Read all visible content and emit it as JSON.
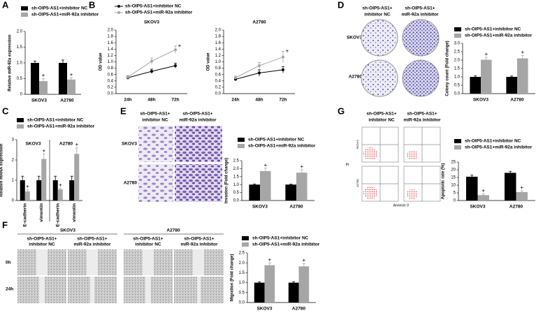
{
  "panel_labels": [
    "A",
    "B",
    "C",
    "D",
    "E",
    "F",
    "G"
  ],
  "images": {
    "colony": {
      "headers": [
        [
          "sh-OIP5-AS1+",
          "inhibitor NC"
        ],
        [
          "sh-OIP5-AS1+",
          "miR-92a inhibitor"
        ]
      ],
      "rows": [
        "SKOV3",
        "A2780"
      ]
    },
    "invasion": {
      "headers": [
        [
          "sh-OIP5-AS1+",
          "inhibitor NC"
        ],
        [
          "sh-OIP5-AS1+",
          "miR-92a inhibitor"
        ]
      ],
      "rows": [
        "SKOV3",
        "A2780"
      ]
    },
    "flow": {
      "headers": [
        [
          "sh-OIP5-AS1+",
          "inhibitor NC"
        ],
        [
          "sh-OIP5-AS1+",
          "miR-92a inhibitor"
        ]
      ],
      "rows": [
        "SKOV3",
        "A2780"
      ],
      "x_label": "Annexin V",
      "y_label": "PI"
    },
    "migration": {
      "groups": [
        "SKOV3",
        "A2780"
      ],
      "headers": [
        [
          "sh-OIP5-AS1+",
          "inhibitor NC"
        ],
        [
          "sh-OIP5-AS1+",
          "miR-92a inhibitor"
        ],
        [
          "sh-OIP5-AS1+",
          "inhibitor NC"
        ],
        [
          "sh-OIP5-AS1+",
          "miR-92a inhibitor"
        ]
      ],
      "rows": [
        "0h",
        "24h"
      ]
    }
  },
  "chart_data": [
    {
      "type": "bar",
      "ylabel": "Relative miR-92a expression",
      "categories": [
        "SKOV3",
        "A2780"
      ],
      "series": [
        {
          "name": "sh-OIP5-AS1+inhibitor NC",
          "color": "#000000",
          "values": [
            1.0,
            1.0
          ],
          "errors": [
            0.06,
            0.09
          ]
        },
        {
          "name": "sh-OIP5-AS1+miR-92a inhibitor",
          "color": "#a6a6a6",
          "values": [
            0.42,
            0.47
          ],
          "errors": [
            0.08,
            0.06
          ],
          "significance": [
            "+",
            "+"
          ]
        }
      ],
      "ylim": [
        0,
        2.0
      ],
      "yticks": [
        0,
        {
          "value": 0.5,
          "label": "0.5"
        },
        {
          "value": 1.0,
          "label": "1.0"
        },
        {
          "value": 1.5,
          "label": "1.5"
        },
        {
          "value": 2.0,
          "label": "2.0"
        }
      ]
    },
    {
      "type": "line",
      "title": "SKOV3",
      "ylabel": "OD value",
      "categories": [
        "24h",
        "48h",
        "72h"
      ],
      "series": [
        {
          "name": "sh-OIP5-AS1+inhibitor NC",
          "color": "#000000",
          "values": [
            0.5,
            0.7,
            0.88
          ],
          "errors": [
            0.05,
            0.07,
            0.08
          ]
        },
        {
          "name": "sh-OIP5-AS1+miR-92a inhibitor",
          "color": "#a6a6a6",
          "values": [
            0.52,
            1.02,
            1.38
          ],
          "errors": [
            0.05,
            0.1,
            0.12
          ],
          "significance": [
            null,
            null,
            "+"
          ]
        }
      ],
      "ylim": [
        0,
        2.0
      ],
      "yticks": [
        {
          "value": 0,
          "label": "0.0"
        },
        0.2,
        0.4,
        0.6,
        0.8,
        {
          "value": 1.0,
          "label": "1.0"
        },
        1.2,
        1.4,
        1.6,
        1.8,
        {
          "value": 2.0,
          "label": "2.0"
        }
      ]
    },
    {
      "type": "line",
      "title": "A2780",
      "ylabel": "OD value",
      "categories": [
        "24h",
        "48h",
        "72h"
      ],
      "series": [
        {
          "color": "#000000",
          "values": [
            0.45,
            0.65,
            0.75
          ],
          "errors": [
            0.04,
            0.1,
            0.1
          ]
        },
        {
          "color": "#a6a6a6",
          "values": [
            0.5,
            0.88,
            1.15
          ],
          "errors": [
            0.05,
            0.1,
            0.18
          ],
          "significance": [
            null,
            null,
            "+"
          ]
        }
      ],
      "ylim": [
        0,
        2.0
      ],
      "yticks": [
        {
          "value": 0,
          "label": "0.0"
        },
        0.2,
        0.4,
        0.6,
        0.8,
        {
          "value": 1.0,
          "label": "1.0"
        },
        1.2,
        1.4,
        1.6,
        1.8,
        {
          "value": 2.0,
          "label": "2.0"
        }
      ]
    },
    {
      "type": "bar",
      "ylabel": "Colony count (Fold change)",
      "categories": [
        "SKOV3",
        "A2780"
      ],
      "series": [
        {
          "name": "sh-OIP5-AS1+inhibitor NC",
          "color": "#000000",
          "values": [
            1.0,
            1.0
          ],
          "errors": [
            0.06,
            0.05
          ]
        },
        {
          "name": "sh-OIP5-AS1+miR-92a inhibitor",
          "color": "#a6a6a6",
          "values": [
            2.02,
            2.1
          ],
          "errors": [
            0.15,
            0.18
          ],
          "significance": [
            "+",
            "+"
          ]
        }
      ],
      "ylim": [
        0,
        3.0
      ],
      "yticks": [
        {
          "value": 0,
          "label": "0.0"
        },
        0.5,
        {
          "value": 1.0,
          "label": "1.0"
        },
        1.5,
        {
          "value": 2.0,
          "label": "2.0"
        },
        2.5,
        {
          "value": 3.0,
          "label": "3.0"
        }
      ]
    },
    {
      "type": "bar",
      "ylabel": "Relative mRNA expression",
      "categories": [
        "E-cadherin",
        "vimentin",
        "E-cadherin",
        "vimentin"
      ],
      "groups": [
        "SKOV3",
        "A2780"
      ],
      "series": [
        {
          "name": "sh-OIP5-AS1+inhibitor NC",
          "color": "#000000",
          "values": [
            1.0,
            1.0,
            1.0,
            1.0
          ],
          "errors": [
            0.2,
            0.2,
            0.2,
            0.2
          ]
        },
        {
          "name": "sh-OIP5-AS1+miR-92a inhibitor",
          "color": "#a6a6a6",
          "values": [
            0.45,
            2.05,
            0.55,
            2.3
          ],
          "errors": [
            0.08,
            0.25,
            0.06,
            0.3
          ],
          "significance": [
            "+",
            "+",
            "+",
            "+"
          ]
        }
      ],
      "ylim": [
        0,
        3
      ],
      "yticks": [
        0,
        1,
        2,
        3
      ]
    },
    {
      "type": "bar",
      "ylabel": "Invasion (Fold change)",
      "categories": [
        "SKOV3",
        "A2780"
      ],
      "series": [
        {
          "name": "sh-OIP5-AS1+inhibitor NC",
          "color": "#000000",
          "values": [
            1.0,
            1.0
          ],
          "errors": [
            0.04,
            0.03
          ]
        },
        {
          "name": "sh-OIP5-AS1+miR-92a inhibitor",
          "color": "#a6a6a6",
          "values": [
            1.85,
            1.75
          ],
          "errors": [
            0.18,
            0.18
          ],
          "significance": [
            "+",
            "+"
          ]
        }
      ],
      "ylim": [
        0,
        2.5
      ],
      "yticks": [
        {
          "value": 0,
          "label": "0.0"
        },
        0.5,
        {
          "value": 1.0,
          "label": "1.0"
        },
        1.5,
        {
          "value": 2.0,
          "label": "2.0"
        },
        2.5
      ]
    },
    {
      "type": "bar",
      "ylabel": "Apoptotic rate (%)",
      "categories": [
        "SKOV3",
        "A2780"
      ],
      "series": [
        {
          "name": "sh-OIP5-AS1+inhibitor NC",
          "color": "#000000",
          "values": [
            15.5,
            18
          ],
          "errors": [
            1,
            1
          ]
        },
        {
          "name": "sh-OIP5-AS1+miR-92a inhibitor",
          "color": "#a6a6a6",
          "values": [
            3.5,
            5.5
          ],
          "errors": [
            0.8,
            0.8
          ],
          "significance": [
            "+",
            "+"
          ]
        }
      ],
      "ylim": [
        0,
        25
      ],
      "yticks": [
        0,
        5,
        10,
        15,
        20,
        25
      ]
    },
    {
      "type": "bar",
      "ylabel": "Migration (Fold change)",
      "categories": [
        "SKOV3",
        "A2780"
      ],
      "series": [
        {
          "name": "sh-OIP5-AS1+inhibitor NC",
          "color": "#000000",
          "values": [
            1.0,
            1.0
          ],
          "errors": [
            0.04,
            0.05
          ]
        },
        {
          "name": "sh-OIP5-AS1+miR-92a inhibitor",
          "color": "#a6a6a6",
          "values": [
            1.88,
            1.82
          ],
          "errors": [
            0.12,
            0.15
          ],
          "significance": [
            "+",
            "+"
          ]
        }
      ],
      "ylim": [
        0,
        2.5
      ],
      "yticks": [
        {
          "value": 0,
          "label": "0.0"
        },
        0.5,
        {
          "value": 1.0,
          "label": "1.0"
        },
        1.5,
        {
          "value": 2.0,
          "label": "2.0"
        },
        2.5
      ]
    }
  ]
}
